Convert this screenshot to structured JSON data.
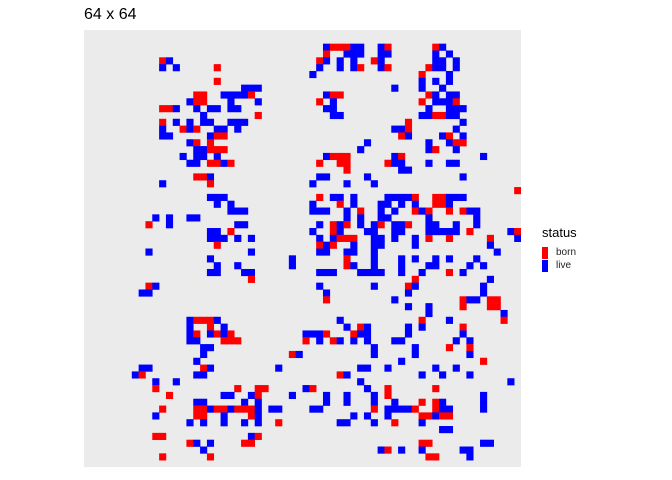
{
  "chart_data": {
    "type": "heatmap",
    "title": "64 x 64",
    "grid_size": [
      64,
      64
    ],
    "background": "#ebebeb",
    "legend": {
      "title": "status",
      "position": "right",
      "entries": [
        {
          "label": "born",
          "color": "#ff0000"
        },
        {
          "label": "live",
          "color": "#0000ff"
        }
      ]
    },
    "cells_note_format": "row strings top to bottom; '.' empty, 'r' born, 'b' live",
    "rows": [
      "................................................................",
      "................................................................",
      "...................................brrrbb..br......rb...........",
      "...................................r..bbb..bb......b.b..........",
      "...........rb.....................rb.b.b..rb.......bb.b.........",
      "...........b.b.....r..............b..b.br..br.....rbb.b.........",
      ".................................b...............r...b..........",
      "...................r.............................b.b.b..........",
      ".......................bbb...................b...b..b...........",
      "................rr..bbbbr..........brr............rb.bb..........",
      "...............brr...b...b........r.b............r.bbbr.........",
      "...........rrb..b.bb.bb............bb.............b..bbb........",
      ".................b.......r..........bb...........bbrrbb.........",
      "...........r.b.b.bb..bbb.......................r.......b........",
      "...........b..rbr..bb.b......................bbr......b.........",
      "...........bb.....brr.........................rb....br.b........",
      "...............br.r......................b........b..brr........",
      "................bbrrr...................b.........br..b.........",
      "..............b.bb.b...............brrr......br...........b.....",
      "...............bb.rrbr............r..rr.....rbb...b..bb.........",
      "......................................r.......bb................",
      "................rrb...............bb.....b.............b........",
      "...........b......r..............b....b...b.....................",
      "...............................................................r",
      "..................bbb.............r.bb.b....bbbbr..rrbbb.......",
      "...................b.b...........b...r.b...bb.b.b..rrb..........",
      ".....................bbb.........bbb..b.r..b.b..rbr..r.rbb......",
      "..........b.b..bb.....................b.b..bb.....b......b......",
      ".........r..b.........bb..........b.rbr.b.br.bbr..bb..b..b......",
      "..................bb.r...........b..rb...bb..bb...bbbbb.r.....br",
      "..................bbb.b.b.........b.brrr..bb.b..b.r..r.....r...b",
      "...................r..............rbr..b..bb....b..........b....",
      ".........b..............b.........bb..bb..b.................b...",
      "..................b...........b.......r...b...b.b..b.b...b......",
      "...................b..b.......b.......rb..b...b...bb....b.b.....",
      "..................bb...bb.........bbb...bbbb..b..b...r.b........",
      "........................r.......................r..........b....",
      ".........rb.......................b.......b....rb.........b.....",
      "........bb.........................b...........b..........b.....",
      "...................................r.........b.........rbb.rr...",
      "...............................................b..b....r...rr...",
      "..................................................b..........b..",
      "...............brrrb.................b...........r...b.......r..",
      "...............b..r.b.................b.rb.....b.b.....r.........",
      "...............br.brbr..........bbbr...rbb.....b.......b.........",
      "...............bb...rrr.........r.b.rb.b.b...bb.......b.b........",
      ".................bb.......................b.....b....r..r........",
      ".................b............rb..........b.....b.......b........",
      "................b.............................b...........r.......",
      "........bb.......rb.........b...........bb..b......b..b..........",
      ".......br.......bb...................rb..........b..b...b.......",
      "..........b..b..........................b.....................b..",
      "..........r...........r..rr.....br.......b..r......r.............",
      "............r.......bb..br....b....b..b...b.r.............b......",
      "................bb.....b.b.........b..b...b..b...r.rb.....b......",
      "...........r....rrbrrbrrrb.bb....bb.......r.bbbbr..rbb....b.....",
      "..........b.....rr..b...rb.............b.b..b....rrbrr..........",
      "...............b.b..b..b.b..r........bb...b..r...b..............",
      "....................................................bb..........",
      "..........rr............br......................................",
      "...............rb.b....rr........................rr.......bb.....",
      ".................b.........................br.b..b.....bb........",
      "...........r......r...............................rr....b........",
      "................................................................"
    ]
  }
}
